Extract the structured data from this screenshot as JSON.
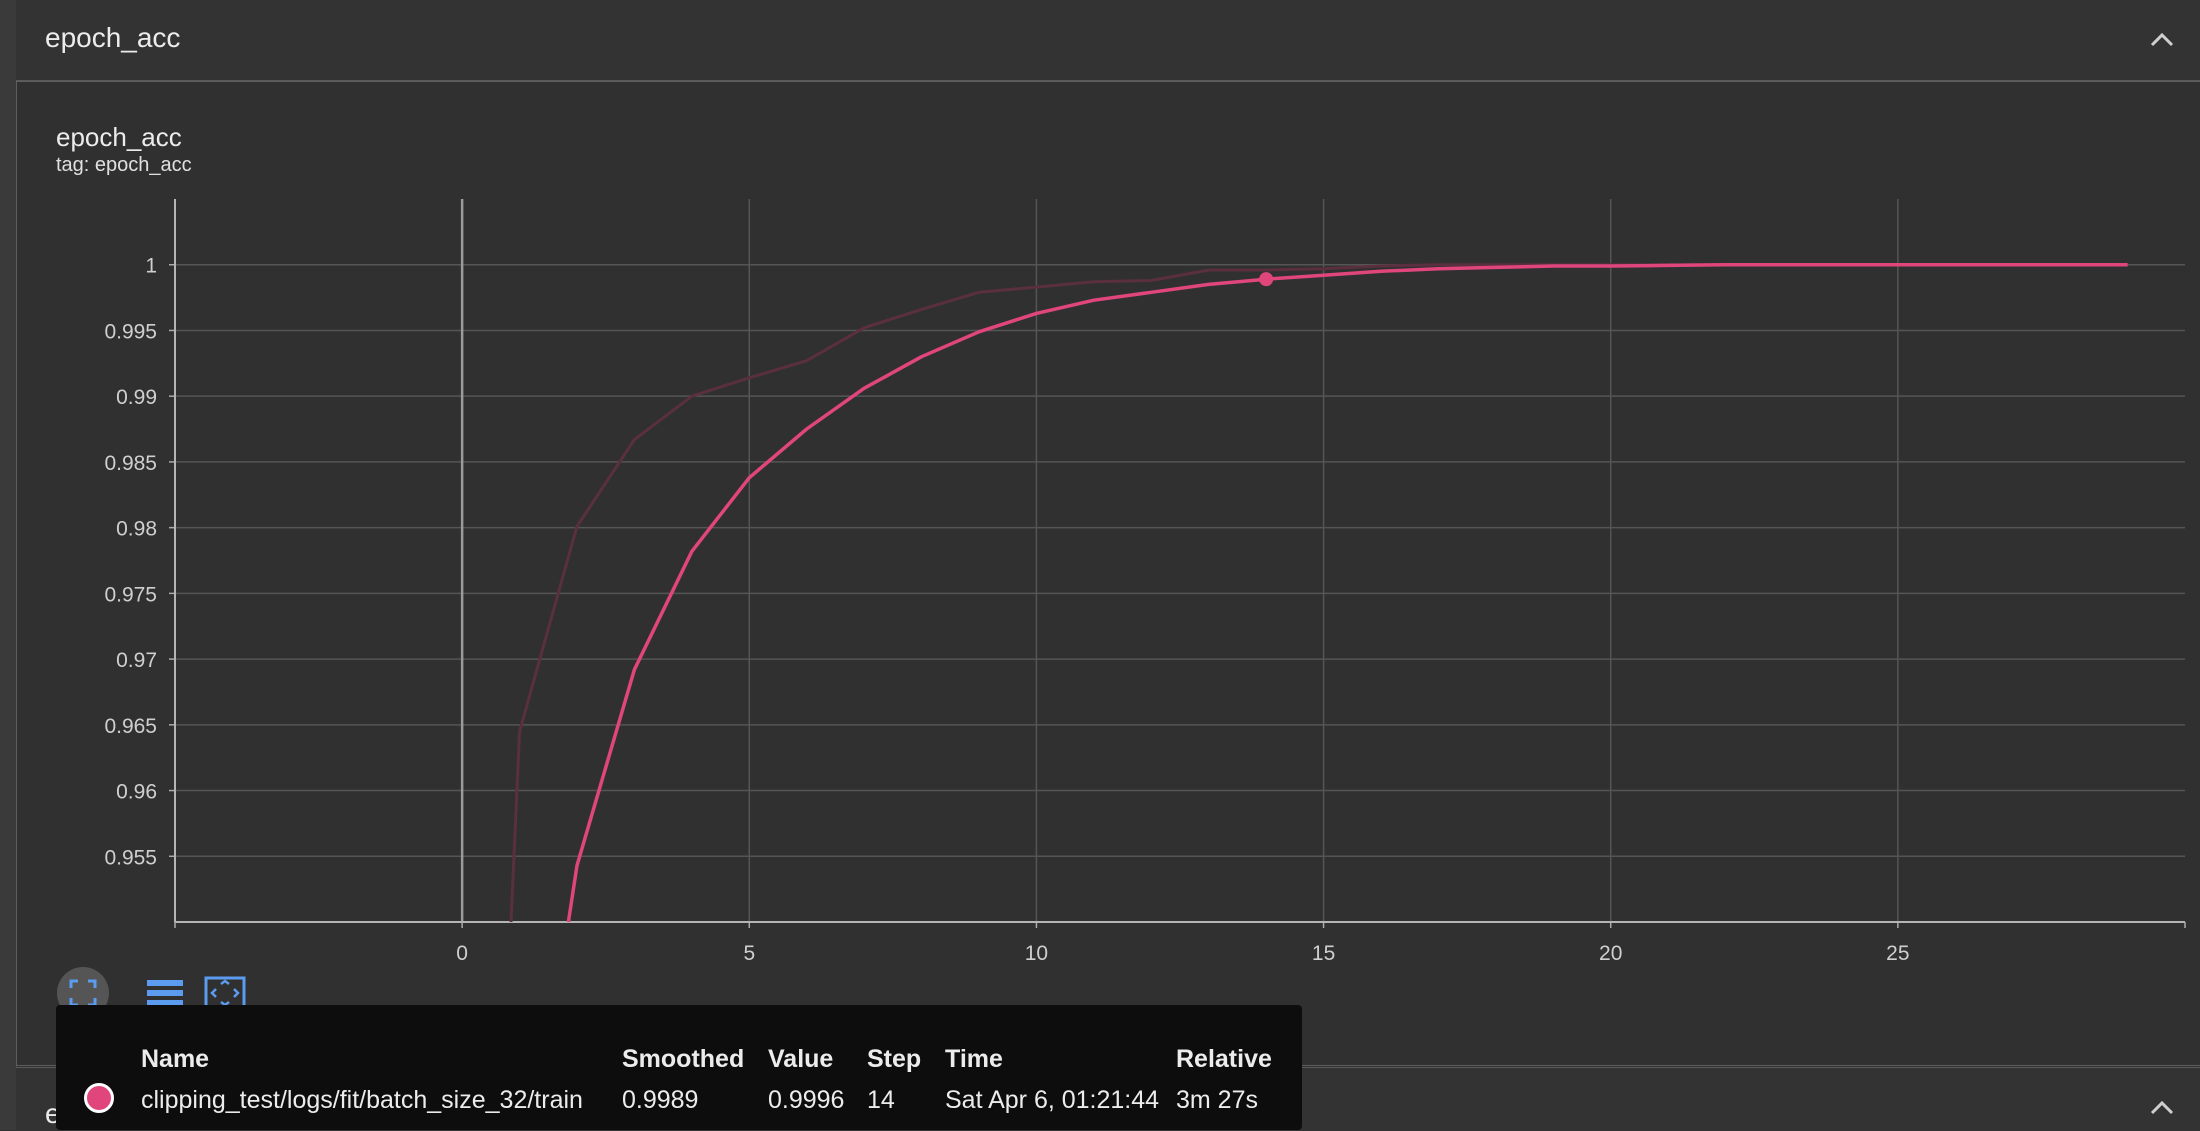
{
  "section": {
    "title": "epoch_acc"
  },
  "card": {
    "title": "epoch_acc",
    "tag": "tag: epoch_acc"
  },
  "next_section": {
    "title": "epoch_loss"
  },
  "colors": {
    "series": "#e0467c",
    "raw_series": "#5a2f3e",
    "grid": "#555555",
    "background": "#303030"
  },
  "chart_data": {
    "type": "line",
    "title": "epoch_acc",
    "xlabel": "",
    "ylabel": "",
    "xlim": [
      -5,
      30
    ],
    "ylim": [
      0.95,
      1.005
    ],
    "x_ticks": [
      0,
      5,
      10,
      15,
      20,
      25
    ],
    "y_ticks": [
      0.955,
      0.96,
      0.965,
      0.97,
      0.975,
      0.98,
      0.985,
      0.99,
      0.995,
      1
    ],
    "y_tick_labels": [
      "0.955",
      "0.96",
      "0.965",
      "0.97",
      "0.975",
      "0.98",
      "0.985",
      "0.99",
      "0.995",
      "1"
    ],
    "grid": true,
    "series": [
      {
        "role": "raw",
        "x": [
          0.85,
          1,
          2,
          3,
          4,
          5,
          6,
          7,
          8,
          9,
          10,
          11,
          12,
          13,
          14,
          15,
          16,
          17,
          18,
          19,
          20,
          21,
          22,
          23,
          24,
          25,
          26,
          27,
          28,
          29
        ],
        "y": [
          0.95,
          0.9645,
          0.9801,
          0.9867,
          0.99,
          0.9914,
          0.9927,
          0.9952,
          0.9966,
          0.9979,
          0.9983,
          0.9987,
          0.9988,
          0.9996,
          0.9996,
          0.9997,
          0.9999,
          1.0,
          1.0,
          1.0,
          1.0,
          1.0,
          1.0,
          1.0,
          1.0,
          1.0,
          1.0,
          1.0,
          1.0,
          1.0
        ]
      },
      {
        "role": "smoothed",
        "x": [
          1.85,
          2,
          3,
          4,
          5,
          6,
          7,
          8,
          9,
          10,
          11,
          12,
          13,
          14,
          15,
          16,
          17,
          18,
          19,
          20,
          21,
          22,
          23,
          24,
          25,
          26,
          27,
          28,
          29
        ],
        "y": [
          0.95,
          0.9543,
          0.9692,
          0.9782,
          0.9838,
          0.9875,
          0.9906,
          0.993,
          0.9949,
          0.9963,
          0.9973,
          0.9979,
          0.9985,
          0.9989,
          0.9992,
          0.9995,
          0.9997,
          0.9998,
          0.9999,
          0.9999,
          0.99995,
          1.0,
          1.0,
          1.0,
          1.0,
          1.0,
          1.0,
          1.0,
          1.0
        ]
      }
    ],
    "highlight": {
      "x": 14,
      "y": 0.9989
    }
  },
  "tooltip": {
    "headers": {
      "name": "Name",
      "smoothed": "Smoothed",
      "value": "Value",
      "step": "Step",
      "time": "Time",
      "relative": "Relative"
    },
    "row": {
      "name": "clipping_test/logs/fit/batch_size_32/train",
      "smoothed": "0.9989",
      "value": "0.9996",
      "step": "14",
      "time": "Sat Apr 6, 01:21:44",
      "relative": "3m 27s"
    }
  },
  "toolbar": {
    "fullscreen_icon": "fullscreen-icon",
    "data_table_icon": "data-table-icon",
    "fit_domain_icon": "fit-domain-icon"
  }
}
